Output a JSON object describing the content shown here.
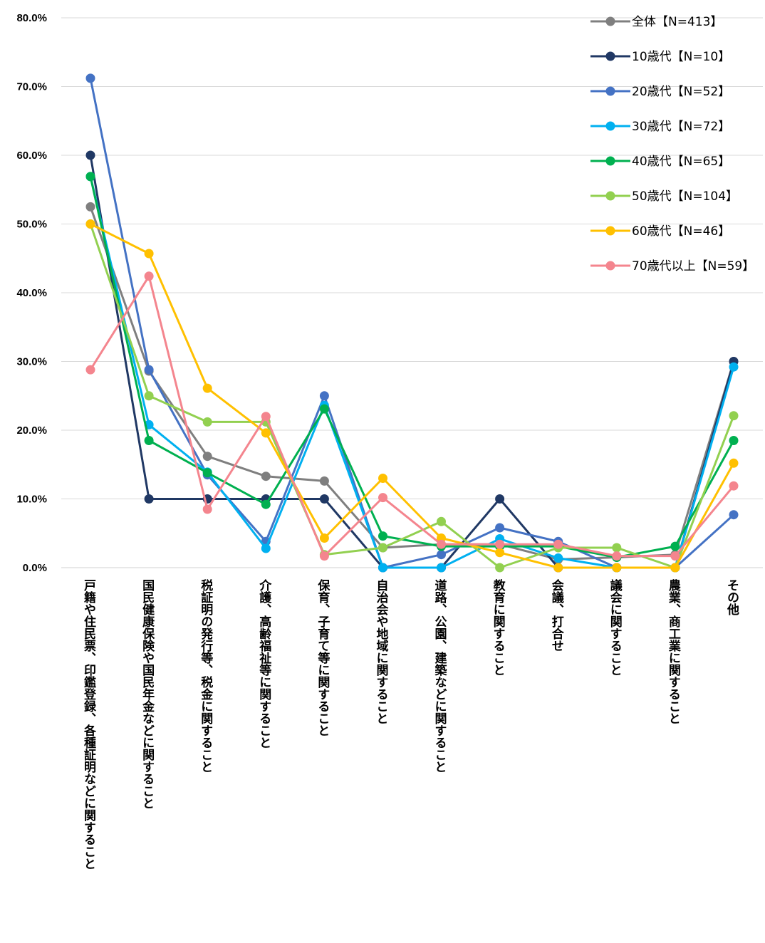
{
  "chart_data": {
    "type": "line",
    "title": "",
    "xlabel": "",
    "ylabel": "",
    "ylim": [
      0,
      80
    ],
    "y_ticks": [
      "0.0%",
      "10.0%",
      "20.0%",
      "30.0%",
      "40.0%",
      "50.0%",
      "60.0%",
      "70.0%",
      "80.0%"
    ],
    "grid": true,
    "legend_position": "top-right",
    "categories": [
      "戸籍や住民票、印鑑登録、各種証明などに関すること",
      "国民健康保険や国民年金などに関すること",
      "税証明の発行等、税金に関すること",
      "介護、高齢福祉等に関すること",
      "保育、子育て等に関すること",
      "自治会や地域に関すること",
      "道路、公園、建築などに関すること",
      "教育に関すること",
      "会議、打合せ",
      "議会に関すること",
      "農業、商工業に関すること",
      "その他"
    ],
    "series": [
      {
        "name": "全体【N=413】",
        "color": "#7f7f7f",
        "values": [
          52.5,
          28.6,
          16.2,
          13.3,
          12.6,
          2.9,
          3.4,
          3.4,
          1.2,
          1.5,
          1.9,
          30.0
        ]
      },
      {
        "name": "10歳代【N=10】",
        "color": "#203864",
        "values": [
          60.0,
          10.0,
          10.0,
          10.0,
          10.0,
          0.0,
          0.0,
          10.0,
          0.0,
          0.0,
          0.0,
          30.0
        ]
      },
      {
        "name": "20歳代【N=52】",
        "color": "#4472c4",
        "values": [
          71.2,
          28.8,
          13.5,
          3.8,
          25.0,
          0.0,
          1.9,
          5.8,
          3.8,
          0.0,
          0.0,
          7.7
        ]
      },
      {
        "name": "30歳代【N=72】",
        "color": "#00b0f0",
        "values": [
          56.9,
          20.8,
          13.9,
          2.8,
          23.6,
          0.0,
          0.0,
          4.2,
          1.4,
          0.0,
          0.0,
          29.2
        ]
      },
      {
        "name": "40歳代【N=65】",
        "color": "#00b050",
        "values": [
          56.9,
          18.5,
          13.8,
          9.2,
          23.1,
          4.6,
          3.1,
          3.1,
          3.1,
          1.5,
          3.1,
          18.5
        ]
      },
      {
        "name": "50歳代【N=104】",
        "color": "#92d050",
        "values": [
          50.0,
          25.0,
          21.2,
          21.2,
          1.9,
          2.9,
          6.7,
          0.0,
          2.9,
          2.9,
          0.0,
          22.1
        ]
      },
      {
        "name": "60歳代【N=46】",
        "color": "#ffc000",
        "values": [
          50.0,
          45.7,
          26.1,
          19.6,
          4.3,
          13.0,
          4.3,
          2.2,
          0.0,
          0.0,
          0.0,
          15.2
        ]
      },
      {
        "name": "70歳代以上【N=59】",
        "color": "#f4858e",
        "values": [
          28.8,
          42.4,
          8.5,
          22.0,
          1.7,
          10.2,
          3.4,
          3.4,
          3.4,
          1.7,
          1.7,
          11.9
        ]
      }
    ]
  }
}
